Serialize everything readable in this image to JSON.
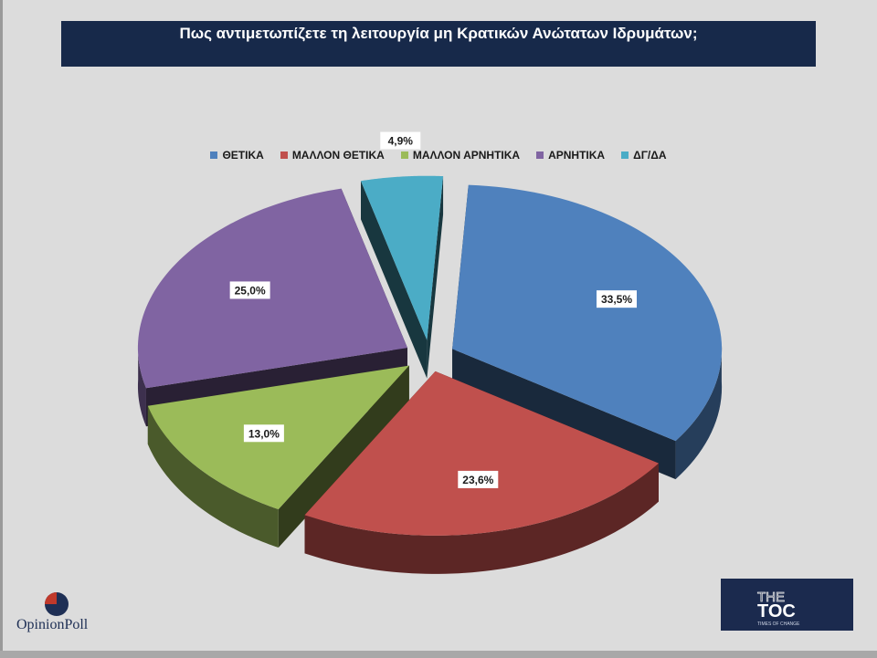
{
  "title": "Πως αντιμετωπίζετε τη λειτουργία μη Κρατικών Ανώτατων Ιδρυμάτων;",
  "chart_data": {
    "type": "pie",
    "title": "Πως αντιμετωπίζετε τη λειτουργία μη Κρατικών Ανώτατων Ιδρυμάτων;",
    "legend_position": "top",
    "slices": [
      {
        "name": "ΘΕΤΙΚΑ",
        "value": 33.5,
        "label": "33,5%",
        "color": "#4f81bd"
      },
      {
        "name": "ΜΑΛΛΟΝ ΘΕΤΙΚΑ",
        "value": 23.6,
        "label": "23,6%",
        "color": "#c0504d"
      },
      {
        "name": "ΜΑΛΛΟΝ ΑΡΝΗΤΙΚΑ",
        "value": 13.0,
        "label": "13,0%",
        "color": "#9bbb59"
      },
      {
        "name": "ΑΡΝΗΤΙΚΑ",
        "value": 25.0,
        "label": "25,0%",
        "color": "#8064a2"
      },
      {
        "name": "ΔΓ/ΔΑ",
        "value": 4.9,
        "label": "4,9%",
        "color": "#4bacc6"
      }
    ]
  },
  "logos": {
    "opinion_poll": "OpinionPoll",
    "toc_main": "THE TOC",
    "toc_sub": "TIMES OF CHANGE"
  }
}
